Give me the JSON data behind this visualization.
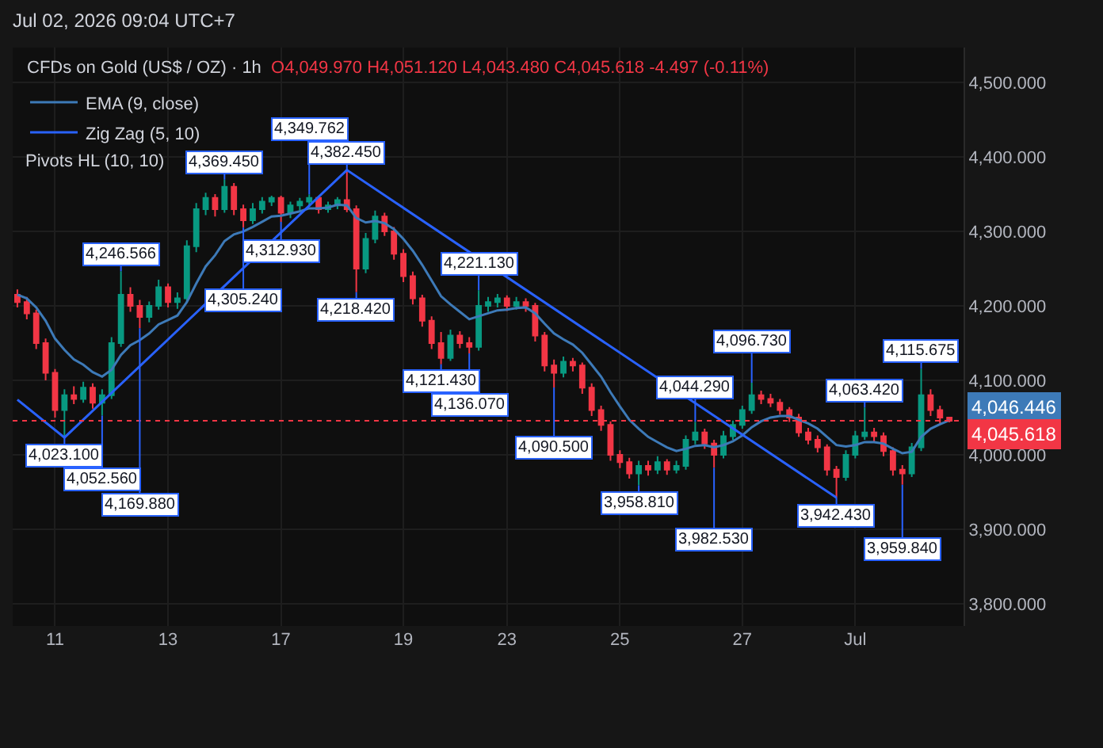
{
  "chart_data": {
    "type": "candlestick",
    "title": "CFDs on Gold (US$ / OZ) · 1h",
    "subtitle": "O4,049.970 H4,051.120 L4,043.480 C4,045.618 -4.497 (-0.11%)",
    "categories": [
      null,
      null,
      null,
      null,
      "11",
      null,
      null,
      null,
      null,
      null,
      null,
      null,
      null,
      null,
      null,
      null,
      "13",
      null,
      null,
      null,
      null,
      null,
      null,
      null,
      null,
      null,
      null,
      null,
      "17",
      null,
      null,
      null,
      null,
      null,
      null,
      null,
      null,
      null,
      null,
      null,
      null,
      "19",
      null,
      null,
      null,
      null,
      null,
      null,
      null,
      null,
      null,
      null,
      "23",
      null,
      null,
      null,
      null,
      null,
      null,
      null,
      null,
      null,
      null,
      null,
      "25",
      null,
      null,
      null,
      null,
      null,
      null,
      null,
      null,
      null,
      null,
      null,
      null,
      "27",
      null,
      null,
      null,
      null,
      null,
      null,
      null,
      null,
      null,
      null,
      null,
      "Jul",
      null,
      null,
      null,
      null,
      null,
      null,
      null,
      null,
      null,
      null
    ],
    "ohlc": [
      [
        4215,
        4222,
        4198,
        4205
      ],
      [
        4205,
        4212,
        4182,
        4190
      ],
      [
        4190,
        4195,
        4142,
        4150
      ],
      [
        4150,
        4156,
        4100,
        4110
      ],
      [
        4110,
        4115,
        4050,
        4060
      ],
      [
        4060,
        4088,
        4023.1,
        4080
      ],
      [
        4080,
        4092,
        4068,
        4075
      ],
      [
        4075,
        4098,
        4070,
        4090
      ],
      [
        4090,
        4096,
        4062,
        4070
      ],
      [
        4070,
        4088,
        4052.56,
        4080
      ],
      [
        4080,
        4158,
        4075,
        4150
      ],
      [
        4150,
        4246.566,
        4145,
        4215
      ],
      [
        4215,
        4225,
        4192,
        4200
      ],
      [
        4200,
        4208,
        4169.88,
        4185
      ],
      [
        4185,
        4206,
        4178,
        4200
      ],
      [
        4200,
        4235,
        4195,
        4225
      ],
      [
        4225,
        4230,
        4198,
        4205
      ],
      [
        4205,
        4218,
        4196,
        4210
      ],
      [
        4210,
        4288,
        4205,
        4280
      ],
      [
        4280,
        4338,
        4272,
        4330
      ],
      [
        4330,
        4352,
        4322,
        4345
      ],
      [
        4345,
        4350,
        4320,
        4330
      ],
      [
        4330,
        4369.45,
        4325,
        4360
      ],
      [
        4360,
        4365,
        4322,
        4330
      ],
      [
        4330,
        4336,
        4305.24,
        4315
      ],
      [
        4315,
        4338,
        4310,
        4330
      ],
      [
        4330,
        4346,
        4324,
        4340
      ],
      [
        4340,
        4348,
        4334,
        4345
      ],
      [
        4345,
        4348,
        4312.93,
        4325
      ],
      [
        4325,
        4340,
        4318,
        4335
      ],
      [
        4335,
        4345,
        4328,
        4340
      ],
      [
        4340,
        4349.762,
        4333,
        4345
      ],
      [
        4345,
        4348,
        4324,
        4330
      ],
      [
        4330,
        4340,
        4325,
        4335
      ],
      [
        4335,
        4346,
        4330,
        4342
      ],
      [
        4342,
        4382.45,
        4326,
        4330
      ],
      [
        4330,
        4335,
        4218.42,
        4250
      ],
      [
        4250,
        4298,
        4244,
        4290
      ],
      [
        4290,
        4328,
        4284,
        4320
      ],
      [
        4320,
        4325,
        4294,
        4300
      ],
      [
        4300,
        4306,
        4262,
        4270
      ],
      [
        4270,
        4276,
        4232,
        4240
      ],
      [
        4240,
        4246,
        4202,
        4210
      ],
      [
        4210,
        4215,
        4172,
        4180
      ],
      [
        4180,
        4186,
        4142,
        4150
      ],
      [
        4150,
        4165,
        4121.43,
        4130
      ],
      [
        4130,
        4168,
        4126,
        4160
      ],
      [
        4160,
        4166,
        4143,
        4150
      ],
      [
        4150,
        4158,
        4136.07,
        4145
      ],
      [
        4145,
        4221.13,
        4140,
        4200
      ],
      [
        4200,
        4212,
        4192,
        4205
      ],
      [
        4205,
        4216,
        4198,
        4210
      ],
      [
        4210,
        4214,
        4193,
        4200
      ],
      [
        4200,
        4212,
        4195,
        4205
      ],
      [
        4205,
        4210,
        4192,
        4200
      ],
      [
        4200,
        4204,
        4152,
        4160
      ],
      [
        4160,
        4165,
        4112,
        4120
      ],
      [
        4120,
        4128,
        4090.5,
        4110
      ],
      [
        4110,
        4132,
        4104,
        4125
      ],
      [
        4125,
        4130,
        4112,
        4120
      ],
      [
        4120,
        4124,
        4082,
        4090
      ],
      [
        4090,
        4096,
        4052,
        4060
      ],
      [
        4060,
        4066,
        4032,
        4040
      ],
      [
        4040,
        4045,
        3992,
        4000
      ],
      [
        4000,
        4006,
        3982,
        3990
      ],
      [
        3990,
        3996,
        3968,
        3975
      ],
      [
        3975,
        3992,
        3958.81,
        3985
      ],
      [
        3985,
        3992,
        3972,
        3980
      ],
      [
        3980,
        3998,
        3974,
        3990
      ],
      [
        3990,
        3994,
        3973,
        3980
      ],
      [
        3980,
        3992,
        3975,
        3985
      ],
      [
        3985,
        4026,
        3980,
        4020
      ],
      [
        4020,
        4044.29,
        4014,
        4030
      ],
      [
        4030,
        4035,
        4008,
        4015
      ],
      [
        4015,
        4020,
        3982.53,
        4000
      ],
      [
        4000,
        4032,
        3995,
        4025
      ],
      [
        4025,
        4046,
        4020,
        4040
      ],
      [
        4040,
        4066,
        4035,
        4060
      ],
      [
        4060,
        4096.73,
        4055,
        4080
      ],
      [
        4080,
        4086,
        4068,
        4075
      ],
      [
        4075,
        4082,
        4064,
        4070
      ],
      [
        4070,
        4075,
        4054,
        4060
      ],
      [
        4060,
        4064,
        4044,
        4050
      ],
      [
        4050,
        4055,
        4024,
        4030
      ],
      [
        4030,
        4036,
        4014,
        4020
      ],
      [
        4020,
        4026,
        4003,
        4010
      ],
      [
        4010,
        4014,
        3972,
        3980
      ],
      [
        3980,
        3985,
        3942.43,
        3970
      ],
      [
        3970,
        4006,
        3965,
        4000
      ],
      [
        4000,
        4032,
        3995,
        4025
      ],
      [
        4025,
        4063.42,
        4020,
        4030
      ],
      [
        4030,
        4036,
        4018,
        4025
      ],
      [
        4025,
        4030,
        3998,
        4005
      ],
      [
        4005,
        4010,
        3972,
        3980
      ],
      [
        3980,
        3986,
        3959.84,
        3975
      ],
      [
        3975,
        4016,
        3970,
        4010
      ],
      [
        4010,
        4115.675,
        4005,
        4080
      ],
      [
        4080,
        4088,
        4052,
        4060
      ],
      [
        4060,
        4066,
        4042,
        4049.97
      ],
      [
        4049.97,
        4051.12,
        4043.48,
        4045.618
      ]
    ],
    "series": [
      {
        "name": "EMA (9, close)",
        "type": "line",
        "color": "#3d7ab8",
        "values": [
          4215,
          4210,
          4198,
          4180,
          4156,
          4141,
          4128,
          4121,
          4111,
          4105,
          4114,
          4134,
          4147,
          4154,
          4163,
          4175,
          4181,
          4187,
          4205,
          4230,
          4253,
          4268,
          4287,
          4296,
          4300,
          4306,
          4313,
          4320,
          4321,
          4324,
          4327,
          4331,
          4331,
          4332,
          4336,
          4335,
          4318,
          4312,
          4314,
          4311,
          4303,
          4290,
          4274,
          4255,
          4234,
          4213,
          4202,
          4192,
          4182,
          4186,
          4190,
          4194,
          4195,
          4197,
          4198,
          4190,
          4176,
          4163,
          4155,
          4148,
          4137,
          4121,
          4105,
          4084,
          4065,
          4047,
          4035,
          4024,
          4017,
          4010,
          4005,
          4008,
          4012,
          4013,
          4010,
          4013,
          4018,
          4026,
          4037,
          4045,
          4050,
          4052,
          4052,
          4047,
          4042,
          4035,
          4024,
          4013,
          4011,
          4013,
          4017,
          4017,
          4015,
          4008,
          4002,
          4004,
          4024,
          4035,
          4041,
          4046.446
        ],
        "value_labels": [
          null,
          null,
          null,
          null,
          null,
          null,
          null,
          null,
          null,
          null,
          null,
          null,
          null,
          null,
          null,
          null,
          null,
          null,
          null,
          null,
          null,
          null,
          null,
          null,
          null,
          null,
          null,
          null,
          null,
          null,
          null,
          null,
          null,
          null,
          null,
          null,
          null,
          null,
          null,
          null,
          null,
          null,
          null,
          null,
          null,
          null,
          null,
          null,
          null,
          null,
          null,
          null,
          null,
          null,
          null,
          null,
          null,
          null,
          null,
          null,
          null,
          null,
          null,
          null,
          null,
          null,
          null,
          null,
          null,
          null,
          null,
          null,
          null,
          null,
          null,
          null,
          null,
          null,
          null,
          null,
          null,
          null,
          null,
          null,
          null,
          null,
          null,
          null,
          null,
          null,
          null,
          null,
          null,
          null,
          null,
          null,
          null,
          null,
          null,
          "4,046.446"
        ]
      },
      {
        "name": "Zig Zag (5, 10)",
        "type": "line",
        "color": "#2962ff",
        "values": [
          4074,
          null,
          null,
          null,
          null,
          4023.1,
          null,
          null,
          null,
          null,
          null,
          null,
          null,
          null,
          null,
          null,
          null,
          null,
          null,
          null,
          null,
          null,
          null,
          null,
          null,
          null,
          null,
          null,
          null,
          null,
          null,
          null,
          null,
          null,
          null,
          4382.45,
          null,
          null,
          null,
          null,
          null,
          null,
          null,
          null,
          null,
          null,
          null,
          null,
          null,
          null,
          null,
          null,
          null,
          null,
          null,
          null,
          null,
          null,
          null,
          null,
          null,
          null,
          null,
          null,
          null,
          null,
          null,
          null,
          null,
          null,
          null,
          null,
          null,
          null,
          null,
          null,
          null,
          null,
          null,
          null,
          null,
          null,
          null,
          null,
          null,
          null,
          null,
          3942.43,
          null,
          null,
          null,
          null,
          null,
          null,
          null,
          null,
          null,
          null,
          null,
          null
        ]
      }
    ],
    "annotations": [
      "Jul 02, 2026 09:04 UTC+7",
      "Pivots HL (10, 10)",
      {
        "text": "4,023.100",
        "y": 4023.1
      },
      {
        "text": "4,052.560",
        "y": 4052.56
      },
      {
        "text": "4,246.566",
        "y": 4246.566
      },
      {
        "text": "4,169.880",
        "y": 4169.88
      },
      {
        "text": "4,369.450",
        "y": 4369.45
      },
      {
        "text": "4,305.240",
        "y": 4305.24
      },
      {
        "text": "4,312.930",
        "y": 4312.93
      },
      {
        "text": "4,349.762",
        "y": 4349.762
      },
      {
        "text": "4,382.450",
        "y": 4382.45
      },
      {
        "text": "4,218.420",
        "y": 4218.42
      },
      {
        "text": "4,121.430",
        "y": 4121.43
      },
      {
        "text": "4,136.070",
        "y": 4136.07
      },
      {
        "text": "4,221.130",
        "y": 4221.13
      },
      {
        "text": "4,090.500",
        "y": 4090.5
      },
      {
        "text": "3,958.810",
        "y": 3958.81
      },
      {
        "text": "4,044.290",
        "y": 4044.29
      },
      {
        "text": "3,982.530",
        "y": 3982.53
      },
      {
        "text": "4,096.730",
        "y": 4096.73
      },
      {
        "text": "3,942.430",
        "y": 3942.43
      },
      {
        "text": "4,063.420",
        "y": 4063.42
      },
      {
        "text": "3,959.840",
        "y": 3959.84
      },
      {
        "text": "4,115.675",
        "y": 4115.675
      }
    ],
    "ref_lines": [
      {
        "axis": "y",
        "value": 4045.618,
        "label": "4,045.618",
        "color": "#f23645",
        "line_style": "dotted"
      }
    ],
    "ylim": [
      3770,
      4547
    ],
    "yticks": [
      {
        "value": 3800,
        "label": "3,800.000"
      },
      {
        "value": 3900,
        "label": "3,900.000"
      },
      {
        "value": 4000,
        "label": "4,000.000"
      },
      {
        "value": 4100,
        "label": "4,100.000"
      },
      {
        "value": 4200,
        "label": "4,200.000"
      },
      {
        "value": 4300,
        "label": "4,300.000"
      },
      {
        "value": 4400,
        "label": "4,400.000"
      },
      {
        "value": 4500,
        "label": "4,500.000"
      }
    ],
    "grid": true,
    "legend": "top left"
  }
}
